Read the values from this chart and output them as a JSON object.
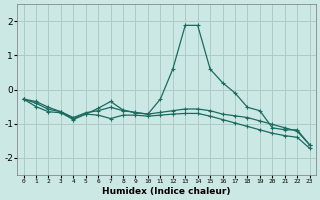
{
  "xlabel": "Humidex (Indice chaleur)",
  "bg_color": "#cce8e4",
  "grid_color": "#aaccc8",
  "line_color": "#1a6b60",
  "x_values": [
    0,
    1,
    2,
    3,
    4,
    5,
    6,
    7,
    8,
    9,
    10,
    11,
    12,
    13,
    14,
    15,
    16,
    17,
    18,
    19,
    20,
    21,
    22,
    23
  ],
  "line1_y": [
    -0.28,
    -0.35,
    -0.52,
    -0.65,
    -0.85,
    -0.72,
    -0.55,
    -0.35,
    -0.6,
    -0.68,
    -0.72,
    -0.28,
    0.6,
    1.88,
    1.88,
    0.6,
    0.2,
    -0.1,
    -0.52,
    -0.62,
    -1.12,
    -1.18,
    -1.18,
    -1.62
  ],
  "line2_y": [
    -0.28,
    -0.4,
    -0.58,
    -0.65,
    -0.82,
    -0.68,
    -0.62,
    -0.52,
    -0.62,
    -0.67,
    -0.72,
    -0.67,
    -0.62,
    -0.57,
    -0.57,
    -0.62,
    -0.72,
    -0.77,
    -0.82,
    -0.92,
    -1.02,
    -1.12,
    -1.22,
    -1.62
  ],
  "line3_y": [
    -0.28,
    -0.5,
    -0.65,
    -0.68,
    -0.88,
    -0.72,
    -0.75,
    -0.85,
    -0.75,
    -0.75,
    -0.78,
    -0.75,
    -0.72,
    -0.7,
    -0.7,
    -0.78,
    -0.88,
    -0.98,
    -1.08,
    -1.18,
    -1.28,
    -1.35,
    -1.4,
    -1.72
  ],
  "ylim": [
    -2.5,
    2.5
  ],
  "yticks": [
    -2,
    -1,
    0,
    1,
    2
  ],
  "xticks": [
    0,
    1,
    2,
    3,
    4,
    5,
    6,
    7,
    8,
    9,
    10,
    11,
    12,
    13,
    14,
    15,
    16,
    17,
    18,
    19,
    20,
    21,
    22,
    23
  ]
}
